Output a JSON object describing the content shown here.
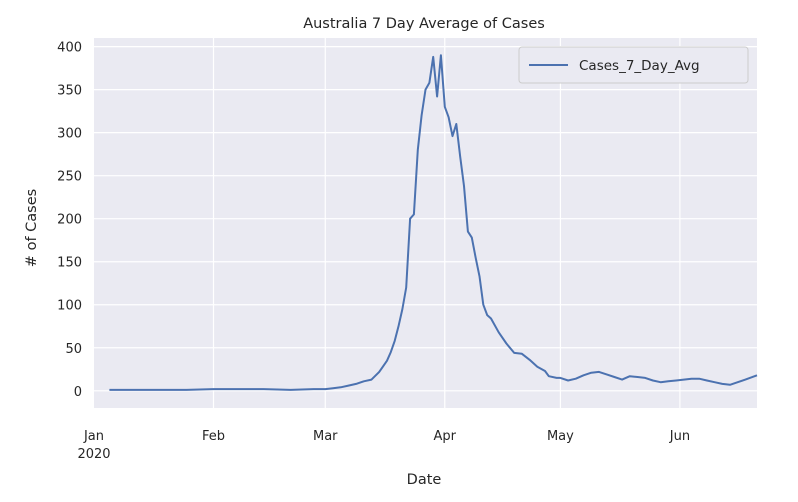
{
  "chart_data": {
    "type": "line",
    "title": "Australia 7 Day Average of Cases",
    "xlabel": "Date",
    "ylabel": "# of Cases",
    "ylim": [
      -20,
      410
    ],
    "xlim": [
      "2020-01-01",
      "2020-06-21"
    ],
    "grid": true,
    "legend_position": "top-right",
    "x_ticks": [
      {
        "date": "2020-01-01",
        "label": "Jan",
        "sublabel": "2020"
      },
      {
        "date": "2020-02-01",
        "label": "Feb",
        "sublabel": ""
      },
      {
        "date": "2020-03-01",
        "label": "Mar",
        "sublabel": ""
      },
      {
        "date": "2020-04-01",
        "label": "Apr",
        "sublabel": ""
      },
      {
        "date": "2020-05-01",
        "label": "May",
        "sublabel": ""
      },
      {
        "date": "2020-06-01",
        "label": "Jun",
        "sublabel": ""
      }
    ],
    "y_ticks": [
      0,
      50,
      100,
      150,
      200,
      250,
      300,
      350,
      400
    ],
    "series": [
      {
        "name": "Cases_7_Day_Avg",
        "color": "#4c72b0",
        "points": [
          [
            "2020-01-05",
            1
          ],
          [
            "2020-01-15",
            1
          ],
          [
            "2020-01-25",
            1
          ],
          [
            "2020-02-01",
            2
          ],
          [
            "2020-02-07",
            2
          ],
          [
            "2020-02-14",
            2
          ],
          [
            "2020-02-21",
            1
          ],
          [
            "2020-02-27",
            2
          ],
          [
            "2020-03-01",
            2
          ],
          [
            "2020-03-03",
            3
          ],
          [
            "2020-03-05",
            4
          ],
          [
            "2020-03-07",
            6
          ],
          [
            "2020-03-09",
            8
          ],
          [
            "2020-03-11",
            11
          ],
          [
            "2020-03-13",
            13
          ],
          [
            "2020-03-15",
            22
          ],
          [
            "2020-03-17",
            35
          ],
          [
            "2020-03-18",
            45
          ],
          [
            "2020-03-19",
            58
          ],
          [
            "2020-03-20",
            75
          ],
          [
            "2020-03-21",
            95
          ],
          [
            "2020-03-22",
            120
          ],
          [
            "2020-03-23",
            200
          ],
          [
            "2020-03-24",
            205
          ],
          [
            "2020-03-25",
            280
          ],
          [
            "2020-03-26",
            320
          ],
          [
            "2020-03-27",
            350
          ],
          [
            "2020-03-28",
            358
          ],
          [
            "2020-03-29",
            388
          ],
          [
            "2020-03-30",
            342
          ],
          [
            "2020-03-31",
            390
          ],
          [
            "2020-04-01",
            330
          ],
          [
            "2020-04-02",
            318
          ],
          [
            "2020-04-03",
            296
          ],
          [
            "2020-04-04",
            310
          ],
          [
            "2020-04-05",
            272
          ],
          [
            "2020-04-06",
            238
          ],
          [
            "2020-04-07",
            185
          ],
          [
            "2020-04-08",
            178
          ],
          [
            "2020-04-09",
            155
          ],
          [
            "2020-04-10",
            133
          ],
          [
            "2020-04-11",
            100
          ],
          [
            "2020-04-12",
            88
          ],
          [
            "2020-04-13",
            84
          ],
          [
            "2020-04-15",
            68
          ],
          [
            "2020-04-17",
            55
          ],
          [
            "2020-04-19",
            44
          ],
          [
            "2020-04-21",
            43
          ],
          [
            "2020-04-23",
            36
          ],
          [
            "2020-04-25",
            28
          ],
          [
            "2020-04-27",
            23
          ],
          [
            "2020-04-28",
            17
          ],
          [
            "2020-04-30",
            15
          ],
          [
            "2020-05-01",
            15
          ],
          [
            "2020-05-03",
            12
          ],
          [
            "2020-05-05",
            14
          ],
          [
            "2020-05-07",
            18
          ],
          [
            "2020-05-09",
            21
          ],
          [
            "2020-05-11",
            22
          ],
          [
            "2020-05-13",
            19
          ],
          [
            "2020-05-15",
            16
          ],
          [
            "2020-05-17",
            13
          ],
          [
            "2020-05-19",
            17
          ],
          [
            "2020-05-21",
            16
          ],
          [
            "2020-05-23",
            15
          ],
          [
            "2020-05-25",
            12
          ],
          [
            "2020-05-27",
            10
          ],
          [
            "2020-05-29",
            11
          ],
          [
            "2020-05-31",
            12
          ],
          [
            "2020-06-02",
            13
          ],
          [
            "2020-06-04",
            14
          ],
          [
            "2020-06-06",
            14
          ],
          [
            "2020-06-08",
            12
          ],
          [
            "2020-06-10",
            10
          ],
          [
            "2020-06-12",
            8
          ],
          [
            "2020-06-14",
            7
          ],
          [
            "2020-06-16",
            10
          ],
          [
            "2020-06-18",
            13
          ],
          [
            "2020-06-21",
            18
          ]
        ]
      }
    ]
  }
}
